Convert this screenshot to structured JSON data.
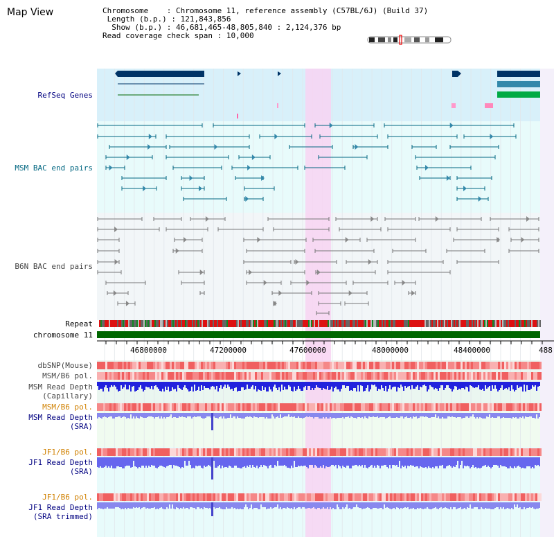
{
  "title": "Map View",
  "info": {
    "chromosome_key": "Chromosome",
    "chromosome_val": "Chromosome 11, reference assembly (C57BL/6J) (Build 37)",
    "length_key": "Length (b.p.)",
    "length_val": "121,843,856",
    "show_key": "Show (b.p.)",
    "show_val": "46,681,465-48,805,840 : 2,124,376 bp",
    "span_key": "Read coverage check span",
    "span_val": "10,000"
  },
  "tracks": {
    "refseq": "RefSeq Genes",
    "msm_bac": "MSM BAC end pairs",
    "b6n_bac": "B6N BAC end pairs",
    "repeat": "Repeat",
    "chromosome": "chromosome 11",
    "dbsnp": "dbSNP(Mouse)",
    "msm_b6_pol_1": "MSM/B6 pol.",
    "msm_depth_cap": "MSM Read Depth",
    "msm_depth_cap_sub": "(Capillary)",
    "msm_b6_pol_2": "MSM/B6 pol.",
    "msm_depth_sra": "MSM Read Depth",
    "msm_depth_sra_sub": "(SRA)",
    "jf1_b6_pol_1": "JF1/B6 pol.",
    "jf1_depth_sra": "JF1 Read Depth",
    "jf1_depth_sra_sub": "(SRA)",
    "jf1_b6_pol_2": "JF1/B6 pol.",
    "jf1_depth_trim": "JF1 Read Depth",
    "jf1_depth_trim_sub": "(SRA trimmed)"
  },
  "axis": {
    "ticks": [
      "46800000",
      "47200000",
      "47600000",
      "48000000",
      "48400000",
      "488"
    ]
  },
  "colors": {
    "refseq_bg": "#d8f0fa",
    "bac_bg": "#e8fbfb",
    "highlight": "#f8d8f4",
    "label_blue": "#000080",
    "label_teal": "#006680",
    "label_orange": "#d08000",
    "gene_navy": "#003366",
    "gene_teal": "#3388aa",
    "gene_green": "#006600",
    "chromosome_green": "#006600",
    "depth_blue": "#2222dd",
    "depth_light": "#7777ee"
  }
}
